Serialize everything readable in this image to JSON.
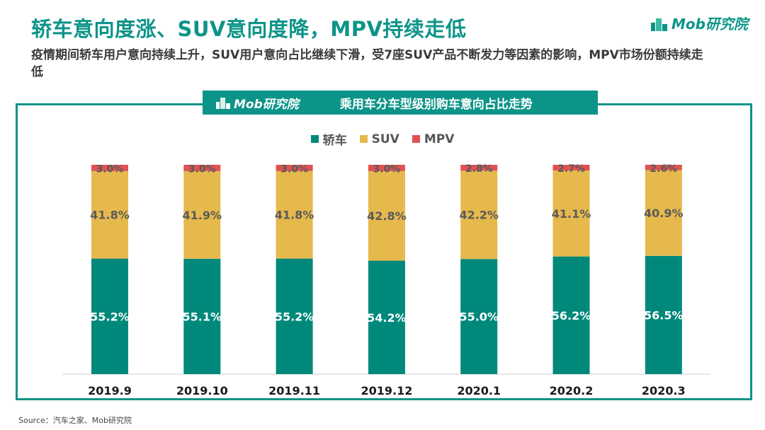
{
  "header": {
    "title": "轿车意向度涨、SUV意向度降，MPV持续走低",
    "subtitle": "疫情期间轿车用户意向持续上升，SUV用户意向占比继续下滑，受7座SUV产品不断发力等因素的影响，MPV市场份额持续走低",
    "logo_text": "Mob研究院"
  },
  "chart_banner": {
    "logo_text": "Mob研究院",
    "title": "乘用车分车型级别购车意向占比走势"
  },
  "source_text": "Source：汽车之家、Mob研究院",
  "colors": {
    "sedan": "#00897b",
    "suv": "#e6b94d",
    "mpv": "#e05252",
    "accent": "#0d9488"
  },
  "chart_data": {
    "type": "bar",
    "stacked": true,
    "categories": [
      "2019.9",
      "2019.10",
      "2019.11",
      "2019.12",
      "2020.1",
      "2020.2",
      "2020.3"
    ],
    "series": [
      {
        "name": "轿车",
        "values": [
          55.2,
          55.1,
          55.2,
          54.2,
          55.0,
          56.2,
          56.5
        ],
        "labels": [
          "55.2%",
          "55.1%",
          "55.2%",
          "54.2%",
          "55.0%",
          "56.2%",
          "56.5%"
        ]
      },
      {
        "name": "SUV",
        "values": [
          41.8,
          41.9,
          41.8,
          42.8,
          42.2,
          41.1,
          40.9
        ],
        "labels": [
          "41.8%",
          "41.9%",
          "41.8%",
          "42.8%",
          "42.2%",
          "41.1%",
          "40.9%"
        ]
      },
      {
        "name": "MPV",
        "values": [
          3.0,
          3.0,
          3.0,
          3.0,
          2.8,
          2.7,
          2.6
        ],
        "labels": [
          "3.0%",
          "3.0%",
          "3.0%",
          "3.0%",
          "2.8%",
          "2.7%",
          "2.6%"
        ]
      }
    ],
    "ylim": [
      0,
      100
    ],
    "unit": "%",
    "legend_position": "top-center",
    "grid": false
  }
}
